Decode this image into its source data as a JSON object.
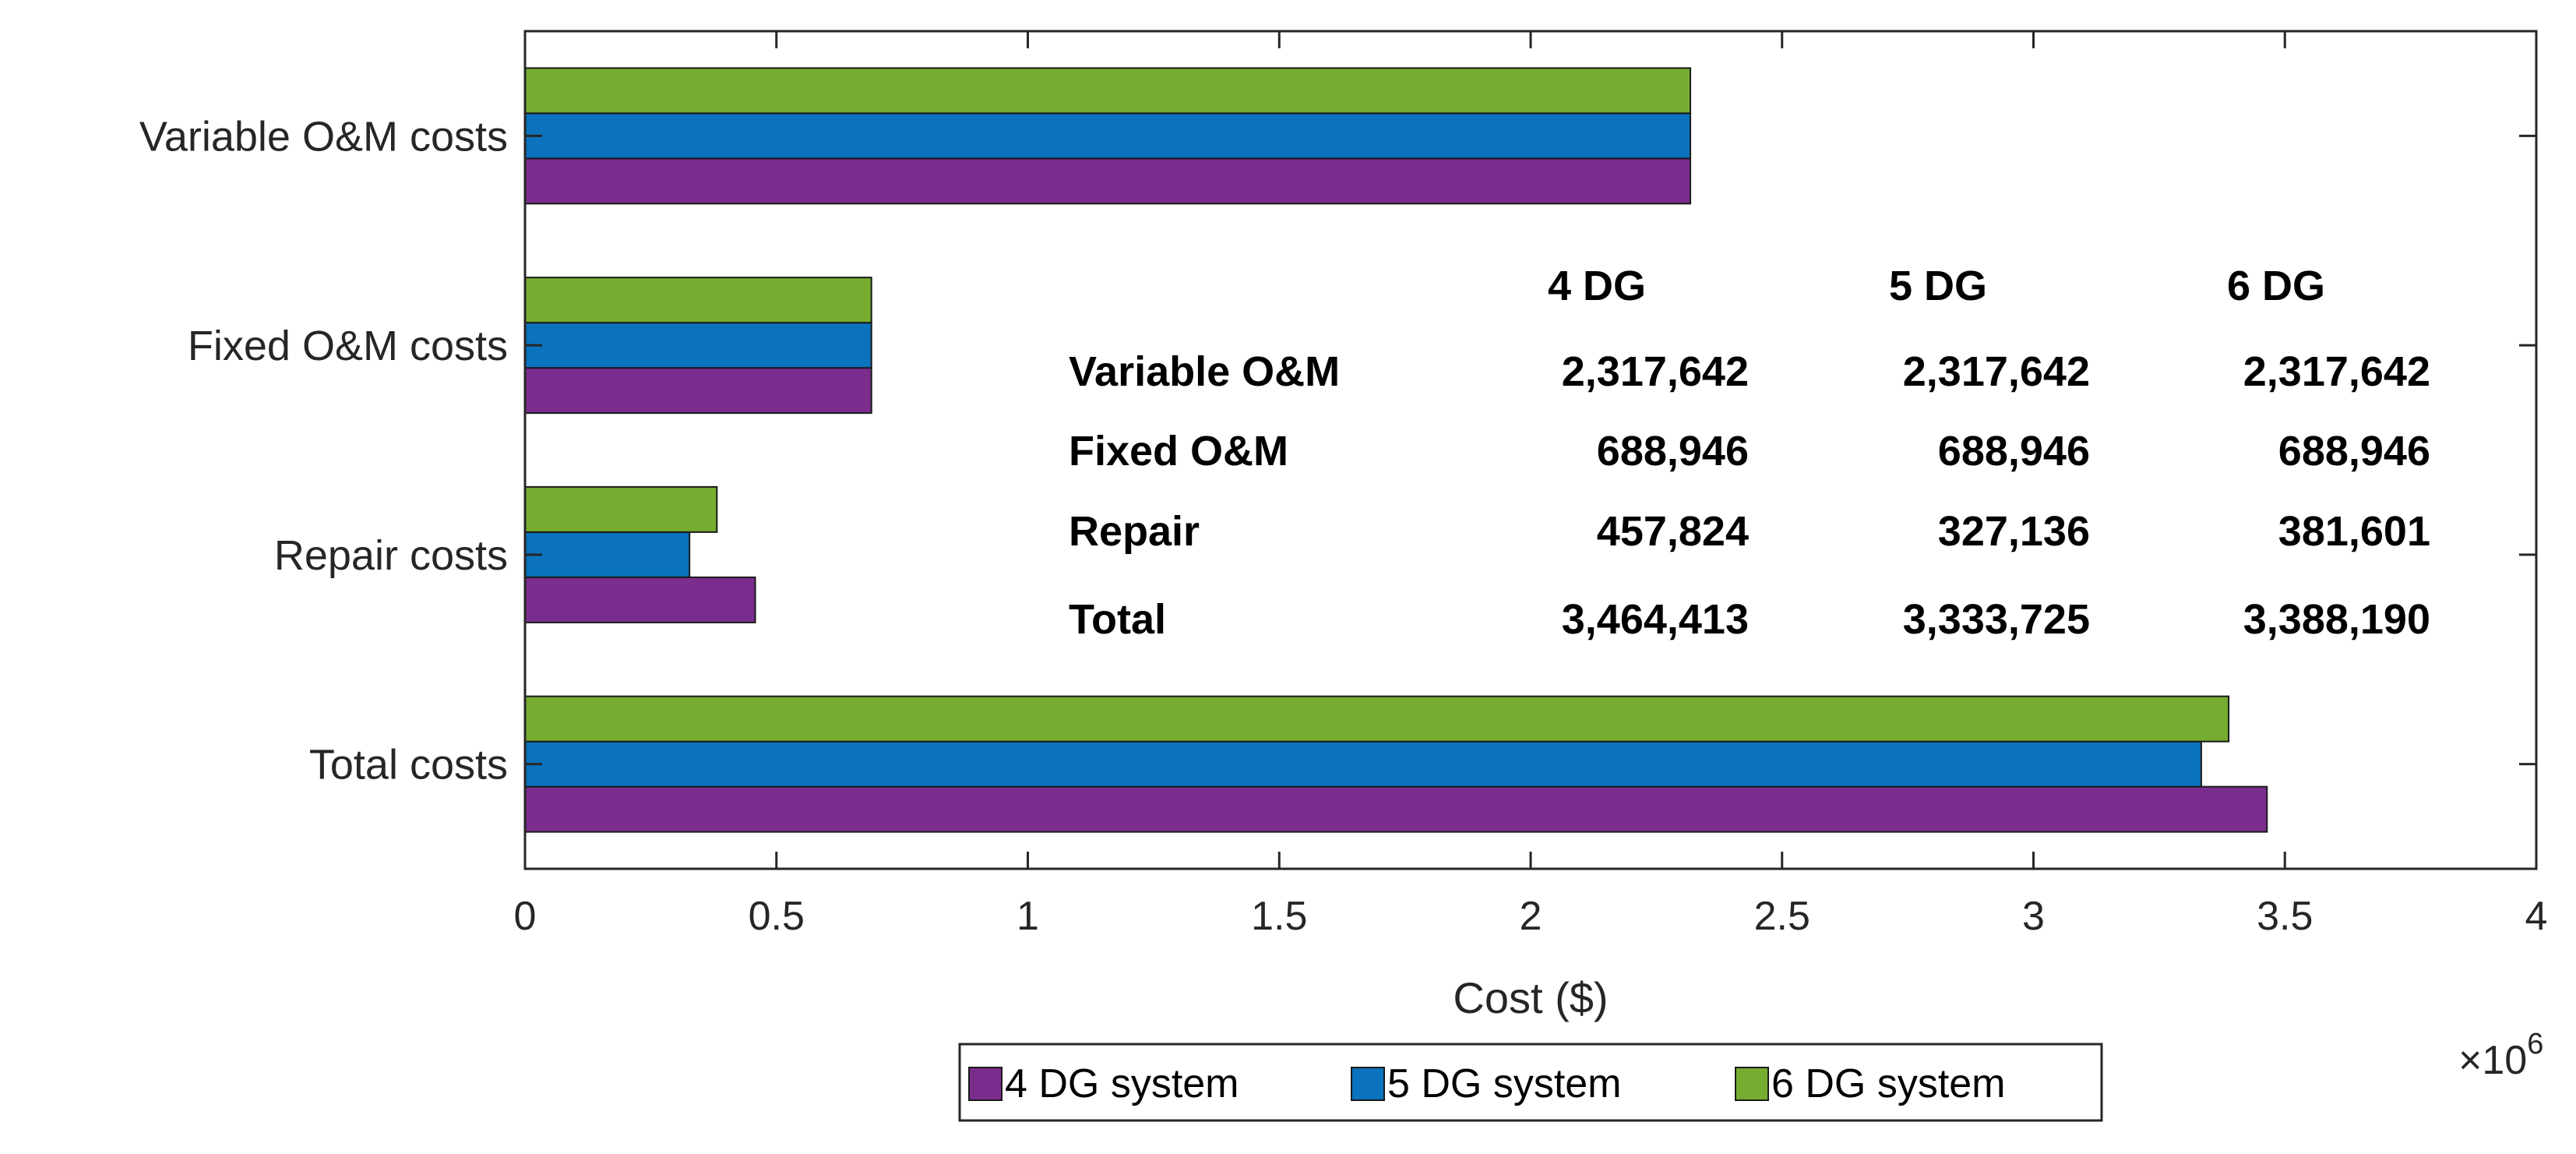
{
  "chart_data": {
    "type": "bar",
    "orientation": "horizontal",
    "categories": [
      "Variable O&M costs",
      "Fixed O&M costs",
      "Repair costs",
      "Total costs"
    ],
    "series": [
      {
        "name": "4 DG system",
        "color": "#7B2D8E",
        "values": [
          2317642,
          688946,
          457824,
          3464413
        ]
      },
      {
        "name": "5 DG system",
        "color": "#0B72BD",
        "values": [
          2317642,
          688946,
          327136,
          3333725
        ]
      },
      {
        "name": "6 DG system",
        "color": "#76AD30",
        "values": [
          2317642,
          688946,
          381601,
          3388190
        ]
      }
    ],
    "xlabel": "Cost ($)",
    "ylabel": "",
    "xlim": [
      0,
      4000000
    ],
    "xticks": [
      0,
      500000,
      1000000,
      1500000,
      2000000,
      2500000,
      3000000,
      3500000,
      4000000
    ],
    "xtick_labels": [
      "0",
      "0.5",
      "1",
      "1.5",
      "2",
      "2.5",
      "3",
      "3.5",
      "4"
    ],
    "x_exponent_label": "×10",
    "x_exponent_power": "6",
    "legend_position": "bottom-center",
    "grid": false,
    "annotation_table": {
      "headers": [
        "4 DG",
        "5 DG",
        "6 DG"
      ],
      "rows": [
        {
          "label": "Variable O&M",
          "values": [
            "2,317,642",
            "2,317,642",
            "2,317,642"
          ]
        },
        {
          "label": "Fixed O&M",
          "values": [
            "688,946",
            "688,946",
            "688,946"
          ]
        },
        {
          "label": "Repair",
          "values": [
            "457,824",
            "327,136",
            "381,601"
          ]
        },
        {
          "label": "Total",
          "values": [
            "3,464,413",
            "3,333,725",
            "3,388,190"
          ]
        }
      ]
    }
  }
}
